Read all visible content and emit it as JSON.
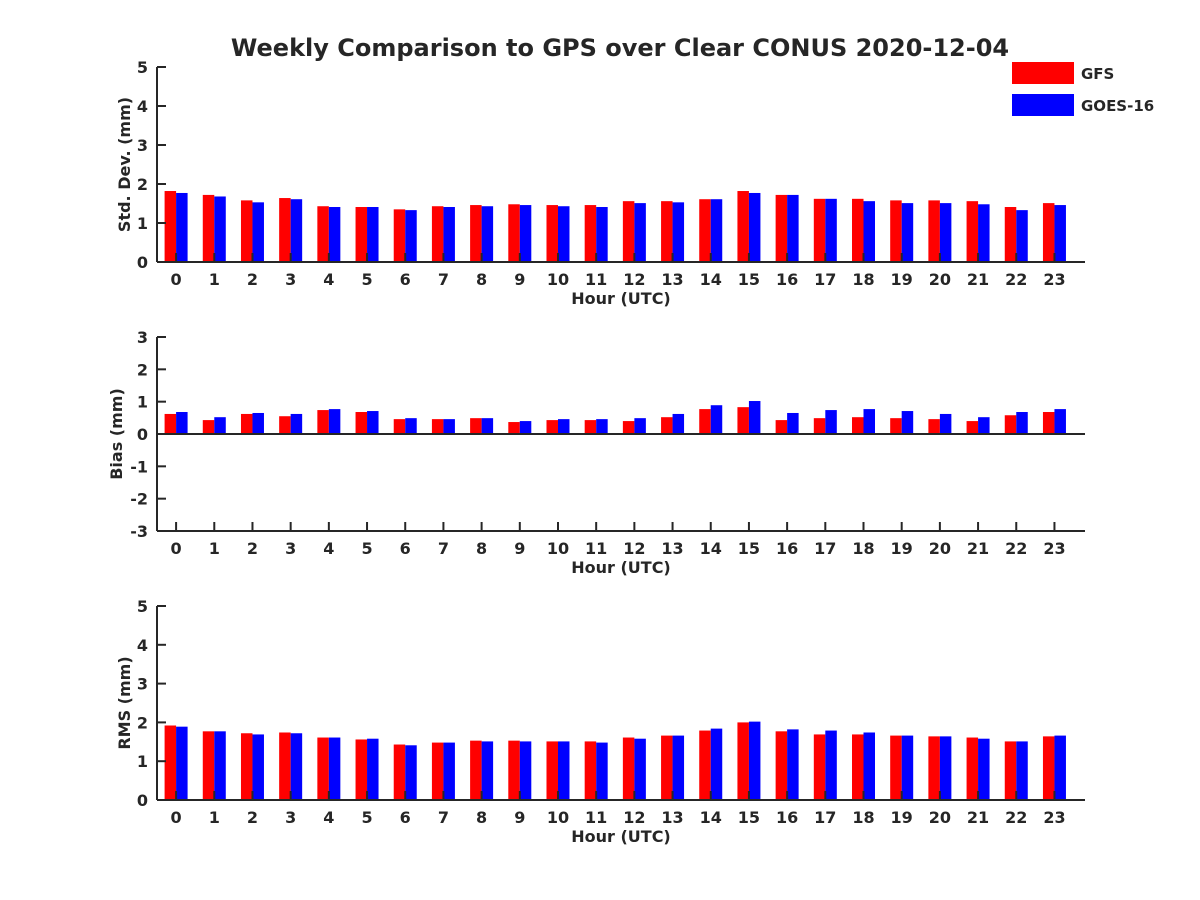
{
  "figure": {
    "title": "Weekly Comparison to GPS over Clear CONUS 2020-12-04"
  },
  "legend": [
    {
      "label": "GFS",
      "color": "#ff0000"
    },
    {
      "label": "GOES-16",
      "color": "#0000ff"
    }
  ],
  "chart_data": [
    {
      "type": "bar",
      "title": "Weekly Comparison to GPS over Clear CONUS 2020-12-04",
      "xlabel": "Hour (UTC)",
      "ylabel": "Std. Dev. (mm)",
      "ylim": [
        0,
        5
      ],
      "yticks": [
        0,
        1,
        2,
        3,
        4,
        5
      ],
      "categories": [
        "0",
        "1",
        "2",
        "3",
        "4",
        "5",
        "6",
        "7",
        "8",
        "9",
        "10",
        "11",
        "12",
        "13",
        "14",
        "15",
        "16",
        "17",
        "18",
        "19",
        "20",
        "21",
        "22",
        "23"
      ],
      "series": [
        {
          "name": "GFS",
          "color": "#ff0000",
          "values": [
            1.82,
            1.72,
            1.58,
            1.64,
            1.43,
            1.41,
            1.35,
            1.43,
            1.46,
            1.48,
            1.46,
            1.46,
            1.56,
            1.56,
            1.61,
            1.82,
            1.72,
            1.62,
            1.62,
            1.58,
            1.58,
            1.56,
            1.41,
            1.51
          ]
        },
        {
          "name": "GOES-16",
          "color": "#0000ff",
          "values": [
            1.77,
            1.68,
            1.53,
            1.61,
            1.41,
            1.41,
            1.33,
            1.41,
            1.43,
            1.46,
            1.43,
            1.41,
            1.51,
            1.53,
            1.61,
            1.77,
            1.72,
            1.62,
            1.56,
            1.51,
            1.51,
            1.48,
            1.33,
            1.46
          ]
        }
      ]
    },
    {
      "type": "bar",
      "xlabel": "Hour (UTC)",
      "ylabel": "Bias (mm)",
      "ylim": [
        -3,
        3
      ],
      "yticks": [
        -3,
        -2,
        -1,
        0,
        1,
        2,
        3
      ],
      "categories": [
        "0",
        "1",
        "2",
        "3",
        "4",
        "5",
        "6",
        "7",
        "8",
        "9",
        "10",
        "11",
        "12",
        "13",
        "14",
        "15",
        "16",
        "17",
        "18",
        "19",
        "20",
        "21",
        "22",
        "23"
      ],
      "series": [
        {
          "name": "GFS",
          "color": "#ff0000",
          "values": [
            0.62,
            0.43,
            0.62,
            0.55,
            0.74,
            0.68,
            0.46,
            0.46,
            0.49,
            0.37,
            0.43,
            0.43,
            0.4,
            0.52,
            0.77,
            0.83,
            0.43,
            0.49,
            0.52,
            0.49,
            0.46,
            0.4,
            0.58,
            0.68
          ]
        },
        {
          "name": "GOES-16",
          "color": "#0000ff",
          "values": [
            0.68,
            0.52,
            0.65,
            0.62,
            0.77,
            0.71,
            0.49,
            0.46,
            0.49,
            0.4,
            0.46,
            0.46,
            0.49,
            0.62,
            0.89,
            1.02,
            0.65,
            0.74,
            0.77,
            0.71,
            0.62,
            0.52,
            0.68,
            0.77
          ]
        }
      ]
    },
    {
      "type": "bar",
      "xlabel": "Hour (UTC)",
      "ylabel": "RMS (mm)",
      "ylim": [
        0,
        5
      ],
      "yticks": [
        0,
        1,
        2,
        3,
        4,
        5
      ],
      "categories": [
        "0",
        "1",
        "2",
        "3",
        "4",
        "5",
        "6",
        "7",
        "8",
        "9",
        "10",
        "11",
        "12",
        "13",
        "14",
        "15",
        "16",
        "17",
        "18",
        "19",
        "20",
        "21",
        "22",
        "23"
      ],
      "series": [
        {
          "name": "GFS",
          "color": "#ff0000",
          "values": [
            1.92,
            1.77,
            1.72,
            1.74,
            1.61,
            1.56,
            1.43,
            1.48,
            1.53,
            1.53,
            1.51,
            1.51,
            1.61,
            1.66,
            1.79,
            2.0,
            1.77,
            1.69,
            1.69,
            1.66,
            1.64,
            1.61,
            1.51,
            1.64
          ]
        },
        {
          "name": "GOES-16",
          "color": "#0000ff",
          "values": [
            1.89,
            1.77,
            1.69,
            1.72,
            1.61,
            1.58,
            1.41,
            1.48,
            1.51,
            1.51,
            1.51,
            1.48,
            1.58,
            1.66,
            1.84,
            2.02,
            1.82,
            1.79,
            1.74,
            1.66,
            1.64,
            1.58,
            1.51,
            1.66
          ]
        }
      ]
    }
  ]
}
